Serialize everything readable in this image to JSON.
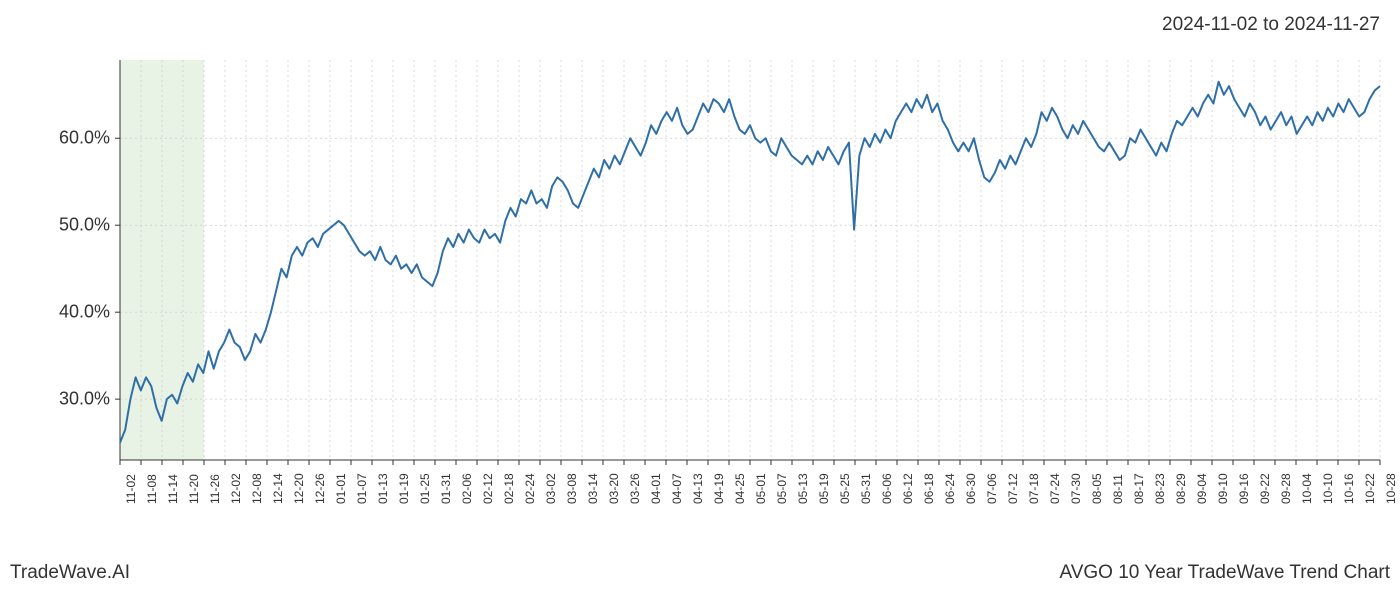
{
  "header": {
    "date_range": "2024-11-02 to 2024-11-27"
  },
  "footer": {
    "left": "TradeWave.AI",
    "right": "AVGO 10 Year TradeWave Trend Chart"
  },
  "chart": {
    "type": "line",
    "background_color": "#ffffff",
    "line_color": "#2f6fa8",
    "line_width": 2,
    "grid_color": "#cccccc",
    "grid_dash": "2,3",
    "highlight_band": {
      "fill": "#d9ead3",
      "opacity": 0.6,
      "x_start_index": 0,
      "x_end_index": 4
    },
    "y_axis": {
      "min": 23,
      "max": 69,
      "ticks": [
        30.0,
        40.0,
        50.0,
        60.0
      ],
      "tick_labels": [
        "30.0%",
        "40.0%",
        "50.0%",
        "60.0%"
      ],
      "label_fontsize": 18,
      "label_color": "#333333"
    },
    "x_axis": {
      "tick_every": 1,
      "label_fontsize": 12,
      "label_color": "#333333",
      "label_rotation": -90,
      "labels": [
        "11-02",
        "11-08",
        "11-14",
        "11-20",
        "11-26",
        "12-02",
        "12-08",
        "12-14",
        "12-20",
        "12-26",
        "01-01",
        "01-07",
        "01-13",
        "01-19",
        "01-25",
        "01-31",
        "02-06",
        "02-12",
        "02-18",
        "02-24",
        "03-02",
        "03-08",
        "03-14",
        "03-20",
        "03-26",
        "04-01",
        "04-07",
        "04-13",
        "04-19",
        "04-25",
        "05-01",
        "05-07",
        "05-13",
        "05-19",
        "05-25",
        "05-31",
        "06-06",
        "06-12",
        "06-18",
        "06-24",
        "06-30",
        "07-06",
        "07-12",
        "07-18",
        "07-24",
        "07-30",
        "08-05",
        "08-11",
        "08-17",
        "08-23",
        "08-29",
        "09-04",
        "09-10",
        "09-16",
        "09-22",
        "09-28",
        "10-04",
        "10-10",
        "10-16",
        "10-22",
        "10-28"
      ]
    },
    "series": {
      "name": "trend",
      "values": [
        25.0,
        26.5,
        30.0,
        32.5,
        31.0,
        32.5,
        31.5,
        29.0,
        27.5,
        30.0,
        30.5,
        29.5,
        31.5,
        33.0,
        32.0,
        34.0,
        33.0,
        35.5,
        33.5,
        35.5,
        36.5,
        38.0,
        36.5,
        36.0,
        34.5,
        35.5,
        37.5,
        36.5,
        38.0,
        40.0,
        42.5,
        45.0,
        44.0,
        46.5,
        47.5,
        46.5,
        48.0,
        48.5,
        47.5,
        49.0,
        49.5,
        50.0,
        50.5,
        50.0,
        49.0,
        48.0,
        47.0,
        46.5,
        47.0,
        46.0,
        47.5,
        46.0,
        45.5,
        46.5,
        45.0,
        45.5,
        44.5,
        45.5,
        44.0,
        43.5,
        43.0,
        44.5,
        47.0,
        48.5,
        47.5,
        49.0,
        48.0,
        49.5,
        48.5,
        48.0,
        49.5,
        48.5,
        49.0,
        48.0,
        50.5,
        52.0,
        51.0,
        53.0,
        52.5,
        54.0,
        52.5,
        53.0,
        52.0,
        54.5,
        55.5,
        55.0,
        54.0,
        52.5,
        52.0,
        53.5,
        55.0,
        56.5,
        55.5,
        57.5,
        56.5,
        58.0,
        57.0,
        58.5,
        60.0,
        59.0,
        58.0,
        59.5,
        61.5,
        60.5,
        62.0,
        63.0,
        62.0,
        63.5,
        61.5,
        60.5,
        61.0,
        62.5,
        64.0,
        63.0,
        64.5,
        64.0,
        63.0,
        64.5,
        62.5,
        61.0,
        60.5,
        61.5,
        60.0,
        59.5,
        60.0,
        58.5,
        58.0,
        60.0,
        59.0,
        58.0,
        57.5,
        57.0,
        58.0,
        57.0,
        58.5,
        57.5,
        59.0,
        58.0,
        57.0,
        58.5,
        59.5,
        49.5,
        58.0,
        60.0,
        59.0,
        60.5,
        59.5,
        61.0,
        60.0,
        62.0,
        63.0,
        64.0,
        63.0,
        64.5,
        63.5,
        65.0,
        63.0,
        64.0,
        62.0,
        61.0,
        59.5,
        58.5,
        59.5,
        58.5,
        60.0,
        57.5,
        55.5,
        55.0,
        56.0,
        57.5,
        56.5,
        58.0,
        57.0,
        58.5,
        60.0,
        59.0,
        60.5,
        63.0,
        62.0,
        63.5,
        62.5,
        61.0,
        60.0,
        61.5,
        60.5,
        62.0,
        61.0,
        60.0,
        59.0,
        58.5,
        59.5,
        58.5,
        57.5,
        58.0,
        60.0,
        59.5,
        61.0,
        60.0,
        59.0,
        58.0,
        59.5,
        58.5,
        60.5,
        62.0,
        61.5,
        62.5,
        63.5,
        62.5,
        64.0,
        65.0,
        64.0,
        66.5,
        65.0,
        66.0,
        64.5,
        63.5,
        62.5,
        64.0,
        63.0,
        61.5,
        62.5,
        61.0,
        62.0,
        63.0,
        61.5,
        62.5,
        60.5,
        61.5,
        62.5,
        61.5,
        63.0,
        62.0,
        63.5,
        62.5,
        64.0,
        63.0,
        64.5,
        63.5,
        62.5,
        63.0,
        64.5,
        65.5,
        66.0
      ]
    }
  }
}
